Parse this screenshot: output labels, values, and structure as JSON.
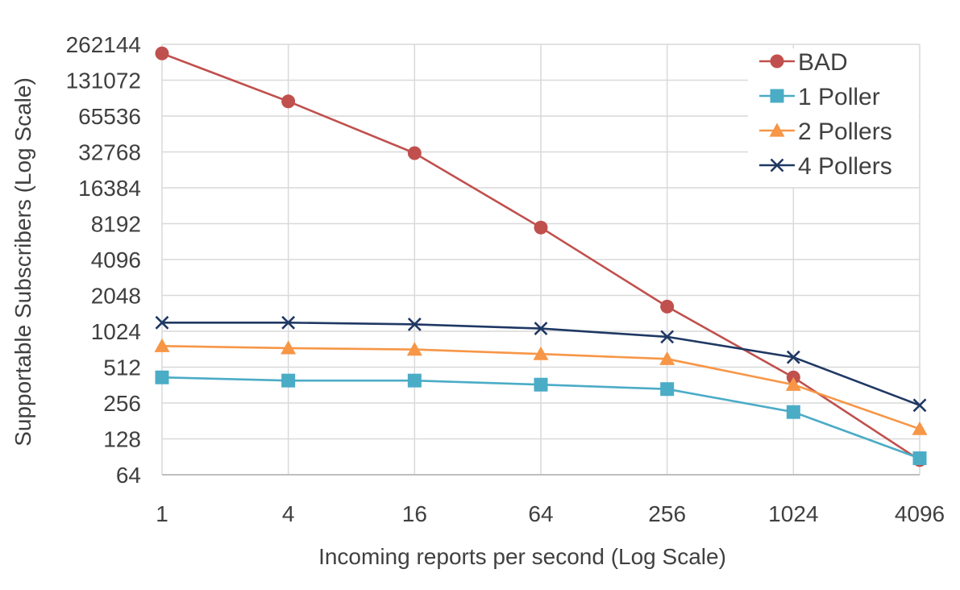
{
  "chart_data": {
    "type": "line",
    "title": "",
    "xlabel": "Incoming reports per second (Log Scale)",
    "ylabel": "Supportable Subscribers (Log Scale)",
    "x_scale": "log2",
    "y_scale": "log2",
    "x": [
      1,
      4,
      16,
      64,
      256,
      1024,
      4096
    ],
    "x_tick_labels": [
      "1",
      "4",
      "16",
      "64",
      "256",
      "1024",
      "4096"
    ],
    "y_tick_labels": [
      "64",
      "128",
      "256",
      "512",
      "1024",
      "2048",
      "4096",
      "8192",
      "16384",
      "32768",
      "65536",
      "131072",
      "262144"
    ],
    "xlim": [
      1,
      4096
    ],
    "ylim": [
      64,
      262144
    ],
    "grid": true,
    "legend_position": "top-right",
    "series": [
      {
        "name": "BAD",
        "color": "#c0504d",
        "marker": "circle",
        "values": [
          220000,
          87000,
          32000,
          7600,
          1650,
          420,
          85
        ]
      },
      {
        "name": "1 Poller",
        "color": "#4bacc6",
        "marker": "square",
        "values": [
          420,
          395,
          395,
          365,
          335,
          215,
          88
        ]
      },
      {
        "name": "2 Pollers",
        "color": "#f79646",
        "marker": "triangle",
        "values": [
          770,
          740,
          720,
          660,
          600,
          365,
          155
        ]
      },
      {
        "name": "4 Pollers",
        "color": "#1f3864",
        "marker": "x",
        "values": [
          1210,
          1210,
          1170,
          1080,
          920,
          620,
          245
        ]
      }
    ]
  }
}
